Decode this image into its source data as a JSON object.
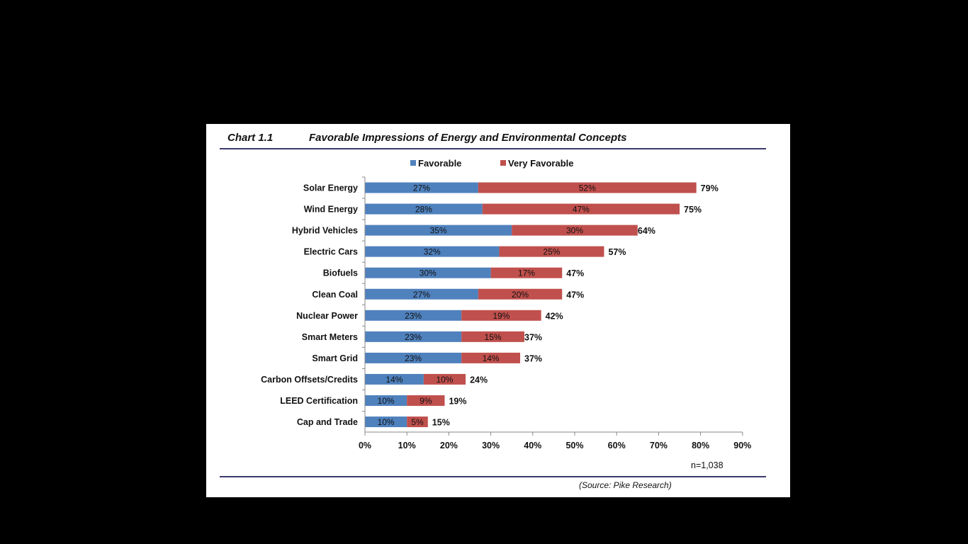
{
  "header": {
    "chart_number": "Chart 1.1",
    "title": "Favorable Impressions of Energy and Environmental Concepts"
  },
  "footer": {
    "sample_size": "n=1,038",
    "source": "(Source: Pike Research)"
  },
  "colors": {
    "favorable": "#4f81bd",
    "very_favorable": "#c0504d",
    "background": "#000000",
    "panel": "#ffffff"
  },
  "chart_data": {
    "type": "bar",
    "orientation": "horizontal",
    "stacked": true,
    "title": "Favorable Impressions of Energy and Environmental Concepts",
    "categories": [
      "Solar Energy",
      "Wind Energy",
      "Hybrid Vehicles",
      "Electric Cars",
      "Biofuels",
      "Clean Coal",
      "Nuclear Power",
      "Smart Meters",
      "Smart Grid",
      "Carbon Offsets/Credits",
      "LEED Certification",
      "Cap and Trade"
    ],
    "series": [
      {
        "name": "Favorable",
        "values": [
          27,
          28,
          35,
          32,
          30,
          27,
          23,
          23,
          23,
          14,
          10,
          10
        ]
      },
      {
        "name": "Very Favorable",
        "values": [
          52,
          47,
          30,
          25,
          17,
          20,
          19,
          15,
          14,
          10,
          9,
          5
        ]
      }
    ],
    "totals": [
      79,
      75,
      64,
      57,
      47,
      47,
      42,
      37,
      37,
      24,
      19,
      15
    ],
    "data_labels": {
      "series": [
        [
          "27%",
          "28%",
          "35%",
          "32%",
          "30%",
          "27%",
          "23%",
          "23%",
          "23%",
          "14%",
          "10%",
          "10%"
        ],
        [
          "52%",
          "47%",
          "30%",
          "25%",
          "17%",
          "20%",
          "19%",
          "15%",
          "14%",
          "10%",
          "9%",
          "5%"
        ]
      ],
      "totals": [
        "79%",
        "75%",
        "64%",
        "57%",
        "47%",
        "47%",
        "42%",
        "37%",
        "37%",
        "24%",
        "19%",
        "15%"
      ]
    },
    "xlim": [
      0,
      90
    ],
    "xticks": [
      0,
      10,
      20,
      30,
      40,
      50,
      60,
      70,
      80,
      90
    ],
    "xtick_labels": [
      "0%",
      "10%",
      "20%",
      "30%",
      "40%",
      "50%",
      "60%",
      "70%",
      "80%",
      "90%"
    ],
    "legend": {
      "position": "top",
      "entries": [
        "Favorable",
        "Very Favorable"
      ]
    },
    "grid": false
  }
}
